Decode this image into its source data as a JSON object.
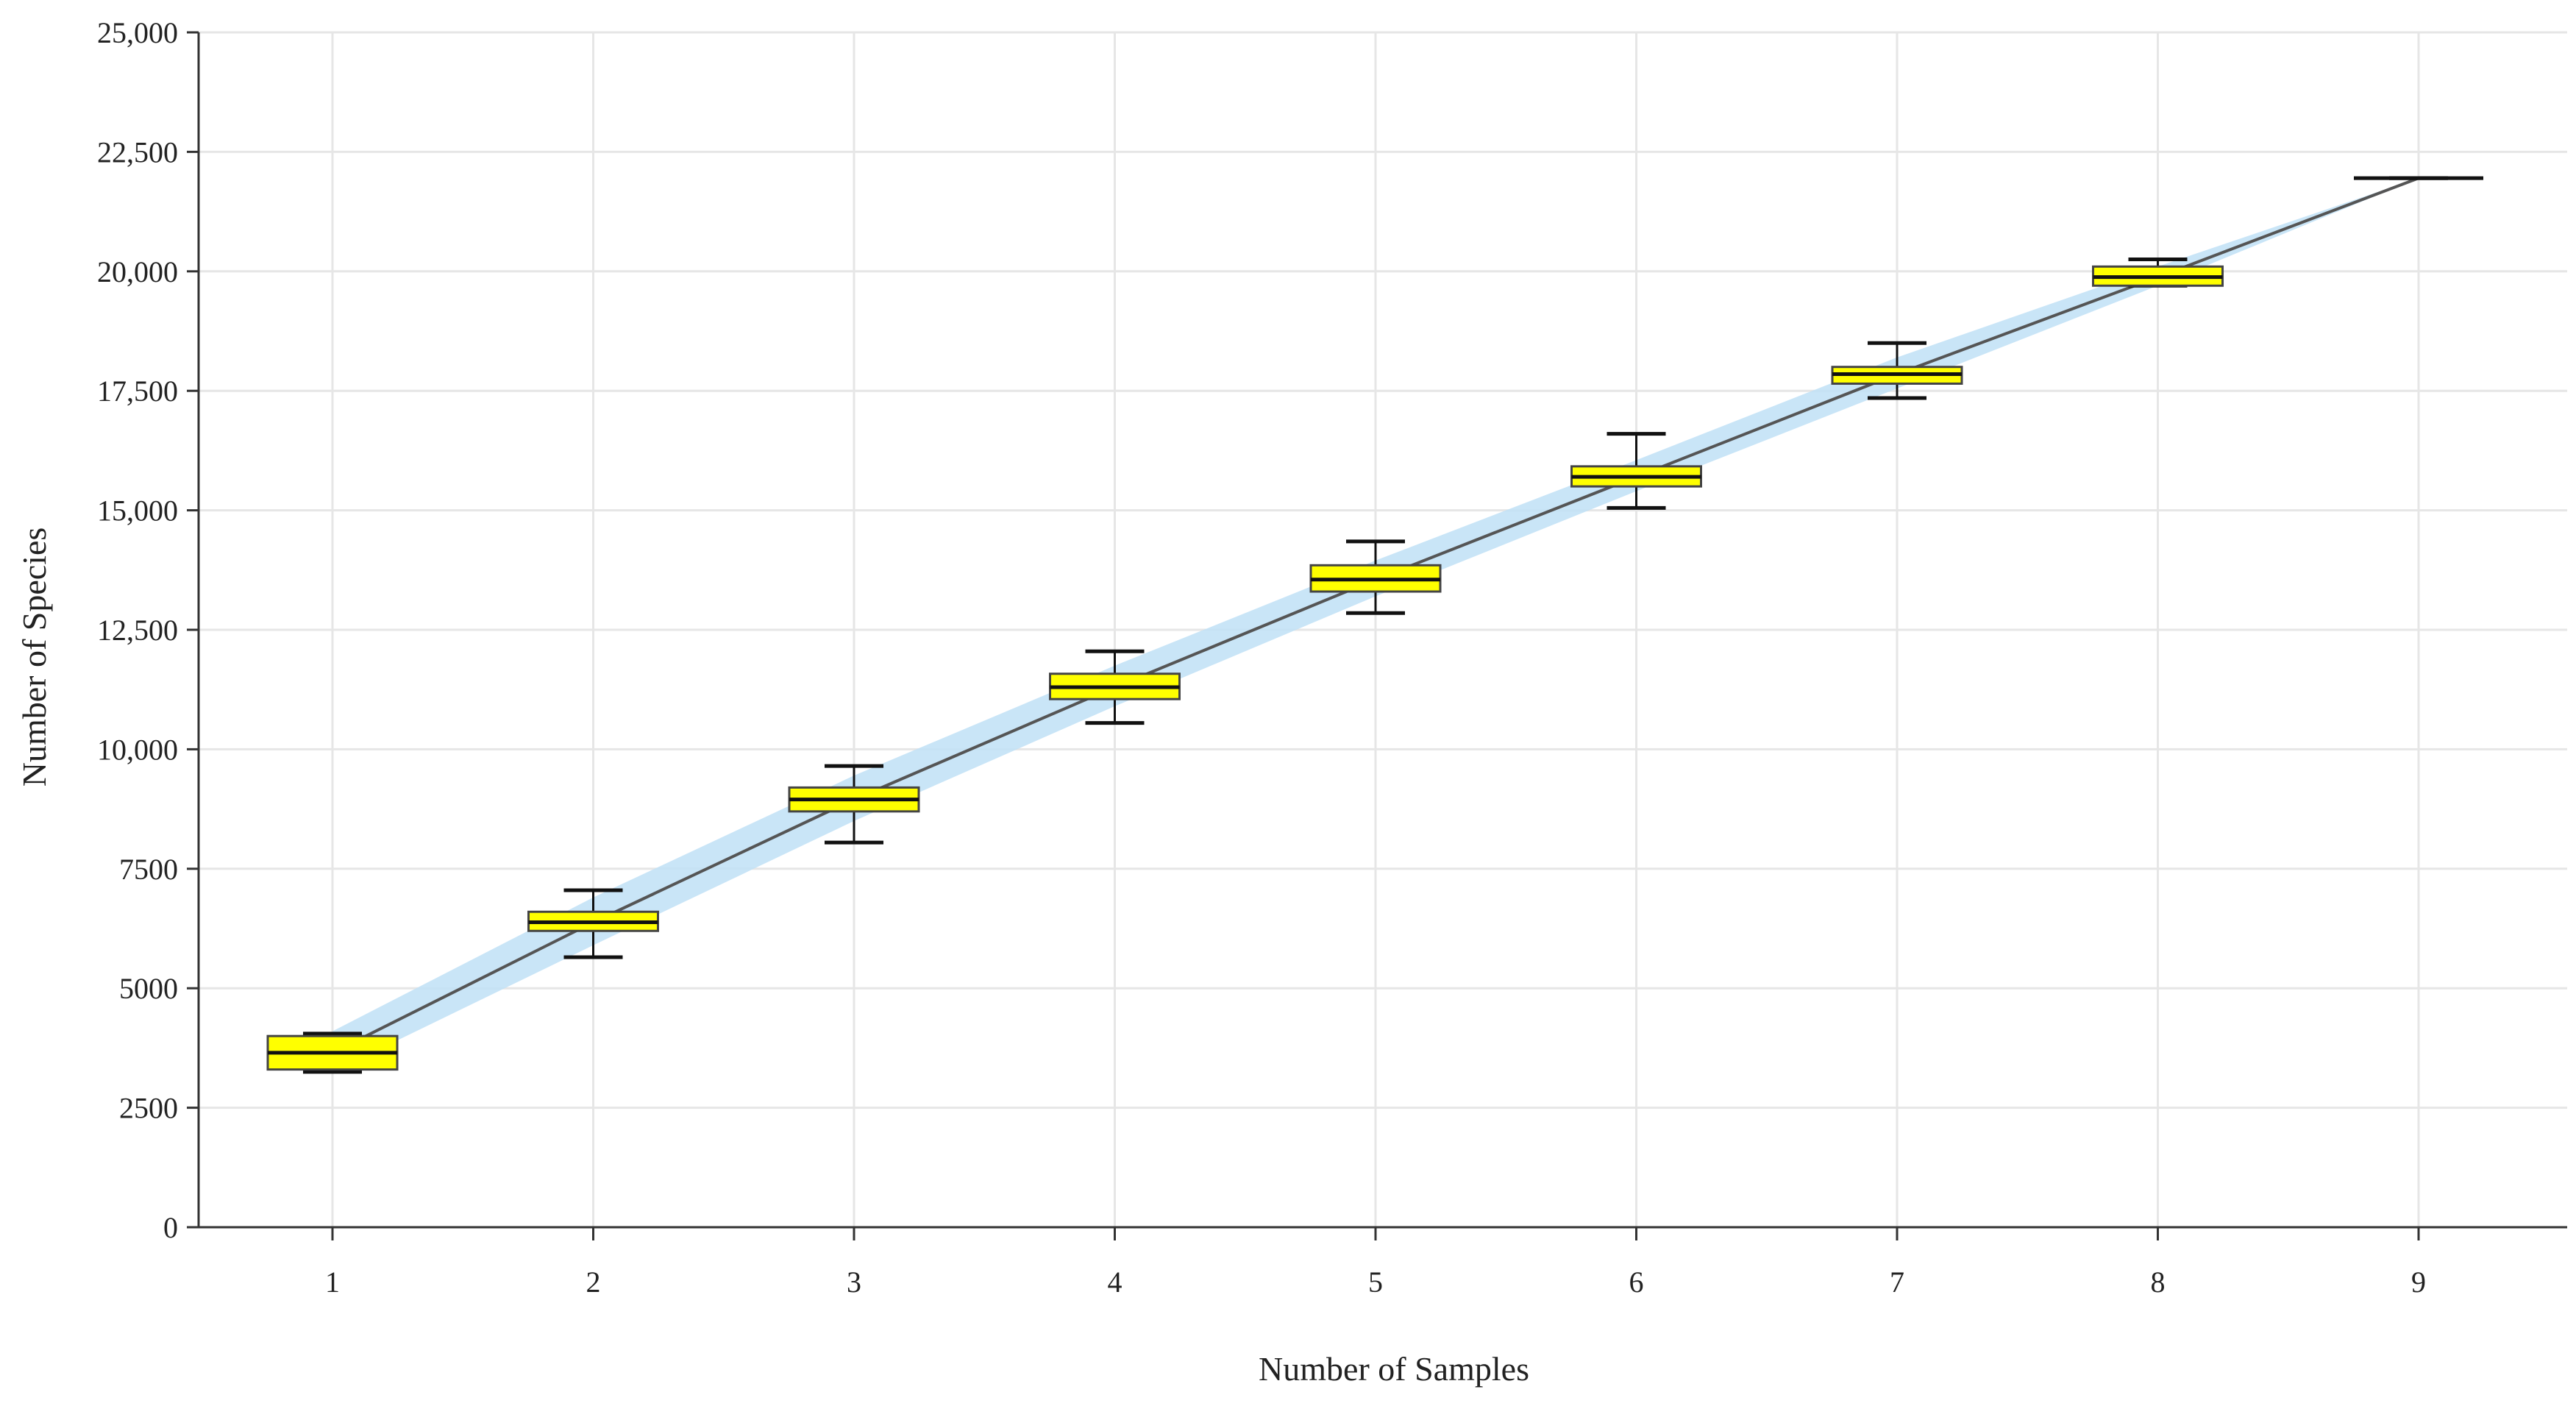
{
  "chart_data": {
    "type": "box",
    "title": "",
    "xlabel": "Number of  Samples",
    "ylabel": "Number of  Species",
    "xlim": [
      0.5,
      9.5
    ],
    "ylim": [
      0,
      25000
    ],
    "x_ticks": [
      "1",
      "2",
      "3",
      "4",
      "5",
      "6",
      "7",
      "8",
      "9"
    ],
    "y_ticks": [
      {
        "value": 0,
        "label": "0"
      },
      {
        "value": 2500,
        "label": "2500"
      },
      {
        "value": 5000,
        "label": "5000"
      },
      {
        "value": 7500,
        "label": "7500"
      },
      {
        "value": 10000,
        "label": "10,000"
      },
      {
        "value": 12500,
        "label": "12,500"
      },
      {
        "value": 15000,
        "label": "15,000"
      },
      {
        "value": 17500,
        "label": "17,500"
      },
      {
        "value": 20000,
        "label": "20,000"
      },
      {
        "value": 22500,
        "label": "22,500"
      },
      {
        "value": 25000,
        "label": "25,000"
      }
    ],
    "grid": true,
    "boxes": [
      {
        "x": 1,
        "whisker_low": 3250,
        "q1": 3300,
        "median": 3650,
        "q3": 4000,
        "whisker_high": 4050
      },
      {
        "x": 2,
        "whisker_low": 5650,
        "q1": 6200,
        "median": 6380,
        "q3": 6600,
        "whisker_high": 7050
      },
      {
        "x": 3,
        "whisker_low": 8050,
        "q1": 8700,
        "median": 8950,
        "q3": 9200,
        "whisker_high": 9650
      },
      {
        "x": 4,
        "whisker_low": 10550,
        "q1": 11050,
        "median": 11300,
        "q3": 11580,
        "whisker_high": 12050
      },
      {
        "x": 5,
        "whisker_low": 12850,
        "q1": 13300,
        "median": 13550,
        "q3": 13850,
        "whisker_high": 14350
      },
      {
        "x": 6,
        "whisker_low": 15050,
        "q1": 15500,
        "median": 15700,
        "q3": 15920,
        "whisker_high": 16600
      },
      {
        "x": 7,
        "whisker_low": 17350,
        "q1": 17650,
        "median": 17850,
        "q3": 18000,
        "whisker_high": 18500
      },
      {
        "x": 8,
        "whisker_low": 19700,
        "q1": 19700,
        "median": 19880,
        "q3": 20100,
        "whisker_high": 20250
      },
      {
        "x": 9,
        "whisker_low": 21950,
        "q1": 21950,
        "median": 21950,
        "q3": 21950,
        "whisker_high": 21950
      }
    ],
    "accumulation_curve": {
      "x": [
        1,
        2,
        3,
        4,
        5,
        6,
        7,
        8,
        9
      ],
      "y": [
        3650,
        6380,
        8950,
        11300,
        13550,
        15700,
        17850,
        19880,
        21950
      ],
      "lower": [
        3250,
        5900,
        8500,
        10900,
        13200,
        15400,
        17550,
        19700,
        21950
      ],
      "upper": [
        4100,
        6900,
        9450,
        11750,
        13950,
        16050,
        18200,
        20100,
        21950
      ]
    },
    "colors": {
      "box_fill": "#ffff00",
      "box_stroke": "#444444",
      "whisker": "#111111",
      "curve": "#555555",
      "band": "#bfe0f6",
      "grid": "#e6e6e6",
      "axis": "#333333"
    }
  }
}
